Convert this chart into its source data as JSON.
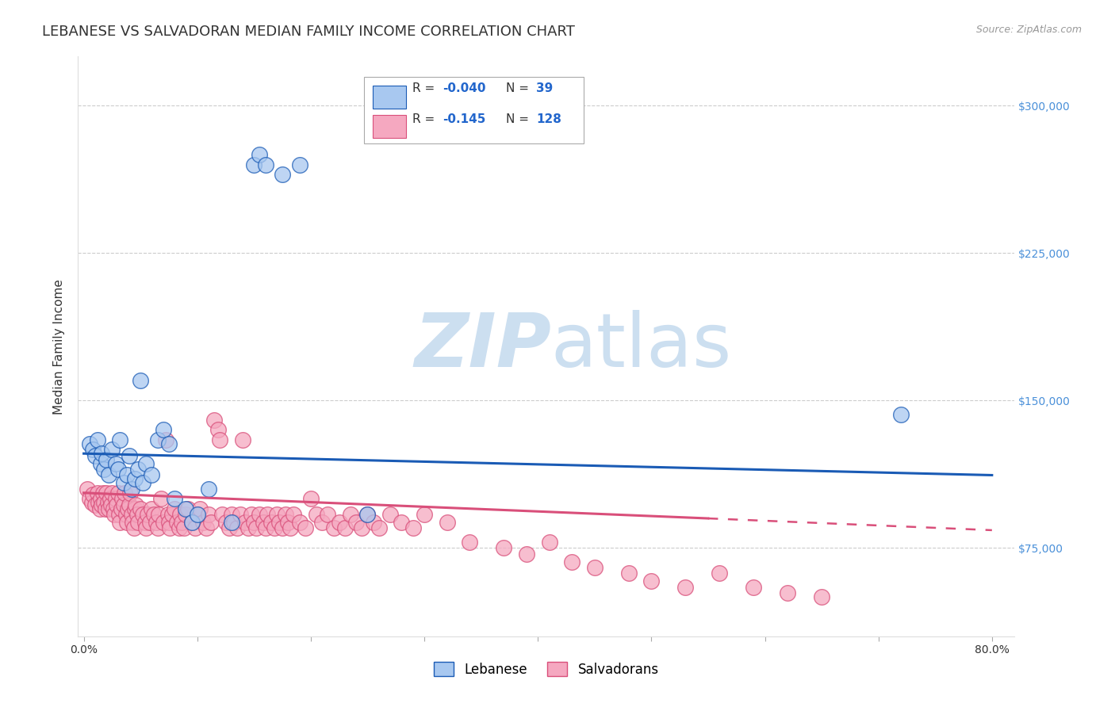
{
  "title": "LEBANESE VS SALVADORAN MEDIAN FAMILY INCOME CORRELATION CHART",
  "source": "Source: ZipAtlas.com",
  "ylabel": "Median Family Income",
  "ylim": [
    30000,
    325000
  ],
  "xlim": [
    -0.005,
    0.82
  ],
  "line_color_blue": "#1a5bb5",
  "line_color_pink": "#d94f7a",
  "scatter_color_blue": "#a8c8f0",
  "scatter_color_pink": "#f5a8c0",
  "grid_color": "#cccccc",
  "title_fontsize": 13,
  "axis_label_fontsize": 11,
  "tick_fontsize": 10,
  "blue_points": [
    [
      0.005,
      128000
    ],
    [
      0.008,
      125000
    ],
    [
      0.01,
      122000
    ],
    [
      0.012,
      130000
    ],
    [
      0.015,
      118000
    ],
    [
      0.016,
      123000
    ],
    [
      0.018,
      115000
    ],
    [
      0.02,
      120000
    ],
    [
      0.022,
      112000
    ],
    [
      0.025,
      125000
    ],
    [
      0.028,
      118000
    ],
    [
      0.03,
      115000
    ],
    [
      0.032,
      130000
    ],
    [
      0.035,
      108000
    ],
    [
      0.038,
      112000
    ],
    [
      0.04,
      122000
    ],
    [
      0.042,
      105000
    ],
    [
      0.045,
      110000
    ],
    [
      0.048,
      115000
    ],
    [
      0.05,
      160000
    ],
    [
      0.052,
      108000
    ],
    [
      0.055,
      118000
    ],
    [
      0.06,
      112000
    ],
    [
      0.065,
      130000
    ],
    [
      0.07,
      135000
    ],
    [
      0.075,
      128000
    ],
    [
      0.08,
      100000
    ],
    [
      0.09,
      95000
    ],
    [
      0.095,
      88000
    ],
    [
      0.1,
      92000
    ],
    [
      0.11,
      105000
    ],
    [
      0.13,
      88000
    ],
    [
      0.15,
      270000
    ],
    [
      0.155,
      275000
    ],
    [
      0.16,
      270000
    ],
    [
      0.175,
      265000
    ],
    [
      0.19,
      270000
    ],
    [
      0.25,
      92000
    ],
    [
      0.72,
      143000
    ]
  ],
  "pink_points": [
    [
      0.003,
      105000
    ],
    [
      0.005,
      100000
    ],
    [
      0.007,
      98000
    ],
    [
      0.008,
      102000
    ],
    [
      0.01,
      97000
    ],
    [
      0.012,
      103000
    ],
    [
      0.013,
      98000
    ],
    [
      0.014,
      95000
    ],
    [
      0.015,
      100000
    ],
    [
      0.016,
      97000
    ],
    [
      0.017,
      103000
    ],
    [
      0.018,
      98000
    ],
    [
      0.019,
      95000
    ],
    [
      0.02,
      103000
    ],
    [
      0.021,
      98000
    ],
    [
      0.022,
      95000
    ],
    [
      0.023,
      100000
    ],
    [
      0.024,
      97000
    ],
    [
      0.025,
      103000
    ],
    [
      0.026,
      95000
    ],
    [
      0.027,
      92000
    ],
    [
      0.028,
      100000
    ],
    [
      0.029,
      97000
    ],
    [
      0.03,
      103000
    ],
    [
      0.031,
      92000
    ],
    [
      0.032,
      88000
    ],
    [
      0.033,
      95000
    ],
    [
      0.034,
      100000
    ],
    [
      0.035,
      97000
    ],
    [
      0.036,
      103000
    ],
    [
      0.037,
      92000
    ],
    [
      0.038,
      88000
    ],
    [
      0.039,
      95000
    ],
    [
      0.04,
      97000
    ],
    [
      0.041,
      103000
    ],
    [
      0.042,
      92000
    ],
    [
      0.043,
      88000
    ],
    [
      0.044,
      85000
    ],
    [
      0.045,
      95000
    ],
    [
      0.046,
      97000
    ],
    [
      0.047,
      92000
    ],
    [
      0.048,
      88000
    ],
    [
      0.05,
      95000
    ],
    [
      0.052,
      92000
    ],
    [
      0.054,
      88000
    ],
    [
      0.055,
      85000
    ],
    [
      0.056,
      92000
    ],
    [
      0.058,
      88000
    ],
    [
      0.06,
      95000
    ],
    [
      0.062,
      92000
    ],
    [
      0.064,
      88000
    ],
    [
      0.065,
      85000
    ],
    [
      0.066,
      92000
    ],
    [
      0.068,
      100000
    ],
    [
      0.07,
      88000
    ],
    [
      0.072,
      130000
    ],
    [
      0.074,
      92000
    ],
    [
      0.075,
      88000
    ],
    [
      0.076,
      85000
    ],
    [
      0.078,
      92000
    ],
    [
      0.08,
      95000
    ],
    [
      0.082,
      88000
    ],
    [
      0.084,
      85000
    ],
    [
      0.085,
      92000
    ],
    [
      0.086,
      88000
    ],
    [
      0.088,
      85000
    ],
    [
      0.09,
      92000
    ],
    [
      0.092,
      95000
    ],
    [
      0.095,
      88000
    ],
    [
      0.098,
      85000
    ],
    [
      0.1,
      92000
    ],
    [
      0.102,
      95000
    ],
    [
      0.105,
      88000
    ],
    [
      0.108,
      85000
    ],
    [
      0.11,
      92000
    ],
    [
      0.112,
      88000
    ],
    [
      0.115,
      140000
    ],
    [
      0.118,
      135000
    ],
    [
      0.12,
      130000
    ],
    [
      0.122,
      92000
    ],
    [
      0.125,
      88000
    ],
    [
      0.128,
      85000
    ],
    [
      0.13,
      92000
    ],
    [
      0.132,
      88000
    ],
    [
      0.135,
      85000
    ],
    [
      0.138,
      92000
    ],
    [
      0.14,
      130000
    ],
    [
      0.142,
      88000
    ],
    [
      0.145,
      85000
    ],
    [
      0.148,
      92000
    ],
    [
      0.15,
      88000
    ],
    [
      0.152,
      85000
    ],
    [
      0.155,
      92000
    ],
    [
      0.158,
      88000
    ],
    [
      0.16,
      85000
    ],
    [
      0.162,
      92000
    ],
    [
      0.165,
      88000
    ],
    [
      0.168,
      85000
    ],
    [
      0.17,
      92000
    ],
    [
      0.172,
      88000
    ],
    [
      0.175,
      85000
    ],
    [
      0.178,
      92000
    ],
    [
      0.18,
      88000
    ],
    [
      0.182,
      85000
    ],
    [
      0.185,
      92000
    ],
    [
      0.19,
      88000
    ],
    [
      0.195,
      85000
    ],
    [
      0.2,
      100000
    ],
    [
      0.205,
      92000
    ],
    [
      0.21,
      88000
    ],
    [
      0.215,
      92000
    ],
    [
      0.22,
      85000
    ],
    [
      0.225,
      88000
    ],
    [
      0.23,
      85000
    ],
    [
      0.235,
      92000
    ],
    [
      0.24,
      88000
    ],
    [
      0.245,
      85000
    ],
    [
      0.25,
      92000
    ],
    [
      0.255,
      88000
    ],
    [
      0.26,
      85000
    ],
    [
      0.27,
      92000
    ],
    [
      0.28,
      88000
    ],
    [
      0.29,
      85000
    ],
    [
      0.3,
      92000
    ],
    [
      0.32,
      88000
    ],
    [
      0.34,
      78000
    ],
    [
      0.37,
      75000
    ],
    [
      0.39,
      72000
    ],
    [
      0.41,
      78000
    ],
    [
      0.43,
      68000
    ],
    [
      0.45,
      65000
    ],
    [
      0.48,
      62000
    ],
    [
      0.5,
      58000
    ],
    [
      0.53,
      55000
    ],
    [
      0.56,
      62000
    ],
    [
      0.59,
      55000
    ],
    [
      0.62,
      52000
    ],
    [
      0.65,
      50000
    ]
  ],
  "blue_line_x0": 0.0,
  "blue_line_y0": 123000,
  "blue_line_x1": 0.8,
  "blue_line_y1": 112000,
  "pink_line_solid_x0": 0.0,
  "pink_line_solid_y0": 103000,
  "pink_line_solid_x1": 0.55,
  "pink_line_solid_y1": 90000,
  "pink_line_dash_x0": 0.55,
  "pink_line_dash_y0": 90000,
  "pink_line_dash_x1": 0.8,
  "pink_line_dash_y1": 84000
}
